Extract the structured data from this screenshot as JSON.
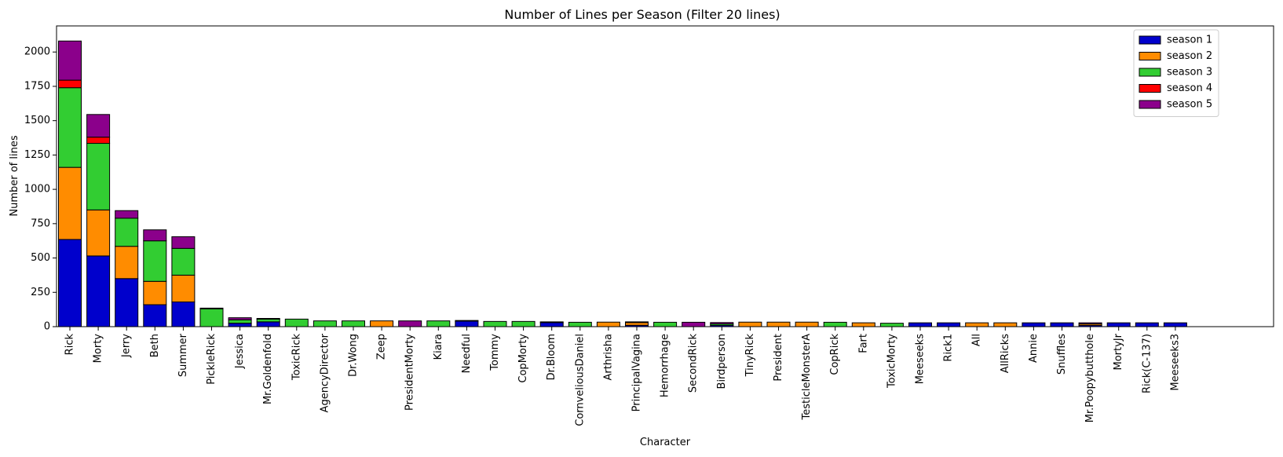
{
  "chart_data": {
    "type": "bar",
    "stacked": true,
    "title": "Number of Lines per Season (Filter 20 lines)",
    "xlabel": "Character",
    "ylabel": "Number of lines",
    "ylim": [
      0,
      2190
    ],
    "yticks": [
      0,
      250,
      500,
      750,
      1000,
      1250,
      1500,
      1750,
      2000
    ],
    "legend_position": "top-right",
    "grid": false,
    "categories": [
      "Rick",
      "Morty",
      "Jerry",
      "Beth",
      "Summer",
      "PickleRick",
      "Jessica",
      "Mr.Goldenfold",
      "ToxicRick",
      "AgencyDirector",
      "Dr.Wong",
      "Zeep",
      "PresidentMorty",
      "Kiara",
      "Needful",
      "Tommy",
      "CopMorty",
      "Dr.Bloom",
      "CornveliousDaniel",
      "Arthrisha",
      "PrincipalVagina",
      "Hemorrhage",
      "SecondRick",
      "Birdperson",
      "TinyRick",
      "President",
      "TesticleMonsterA",
      "CopRick",
      "Fart",
      "ToxicMorty",
      "Meeseeks",
      "Rick1",
      "All",
      "AllRicks",
      "Annie",
      "Snuffles",
      "Mr.Poopybutthole",
      "MortyJr",
      "Rick(C-137)",
      "Meeseeks3"
    ],
    "series": [
      {
        "name": "season 1",
        "color": "#0000cc",
        "values": [
          635,
          515,
          350,
          160,
          180,
          0,
          25,
          35,
          0,
          0,
          0,
          0,
          0,
          0,
          40,
          0,
          0,
          30,
          0,
          0,
          10,
          0,
          0,
          10,
          0,
          0,
          0,
          0,
          0,
          0,
          28,
          28,
          0,
          0,
          28,
          28,
          10,
          28,
          28,
          28
        ]
      },
      {
        "name": "season 2",
        "color": "#ff8c00",
        "values": [
          525,
          335,
          235,
          170,
          195,
          0,
          0,
          0,
          0,
          0,
          0,
          42,
          0,
          0,
          0,
          0,
          0,
          0,
          0,
          33,
          20,
          0,
          0,
          0,
          33,
          33,
          33,
          0,
          28,
          0,
          0,
          0,
          28,
          28,
          0,
          0,
          10,
          0,
          0,
          0
        ]
      },
      {
        "name": "season 3",
        "color": "#32cd32",
        "values": [
          580,
          485,
          205,
          295,
          195,
          130,
          25,
          20,
          55,
          42,
          42,
          0,
          0,
          42,
          0,
          38,
          38,
          0,
          32,
          0,
          0,
          32,
          0,
          10,
          0,
          0,
          0,
          32,
          0,
          25,
          0,
          0,
          0,
          0,
          0,
          0,
          0,
          0,
          0,
          0
        ]
      },
      {
        "name": "season 4",
        "color": "#ff0000",
        "values": [
          55,
          45,
          0,
          0,
          0,
          0,
          0,
          0,
          0,
          0,
          0,
          0,
          0,
          0,
          0,
          0,
          0,
          0,
          0,
          0,
          0,
          0,
          0,
          0,
          0,
          0,
          0,
          0,
          0,
          0,
          0,
          0,
          0,
          0,
          0,
          0,
          0,
          0,
          0,
          0
        ]
      },
      {
        "name": "season 5",
        "color": "#8b008b",
        "values": [
          285,
          165,
          55,
          80,
          85,
          5,
          15,
          5,
          0,
          0,
          0,
          0,
          42,
          0,
          5,
          0,
          0,
          5,
          0,
          0,
          5,
          0,
          32,
          10,
          0,
          0,
          0,
          0,
          0,
          0,
          0,
          0,
          0,
          0,
          0,
          0,
          8,
          0,
          0,
          0
        ]
      }
    ]
  }
}
